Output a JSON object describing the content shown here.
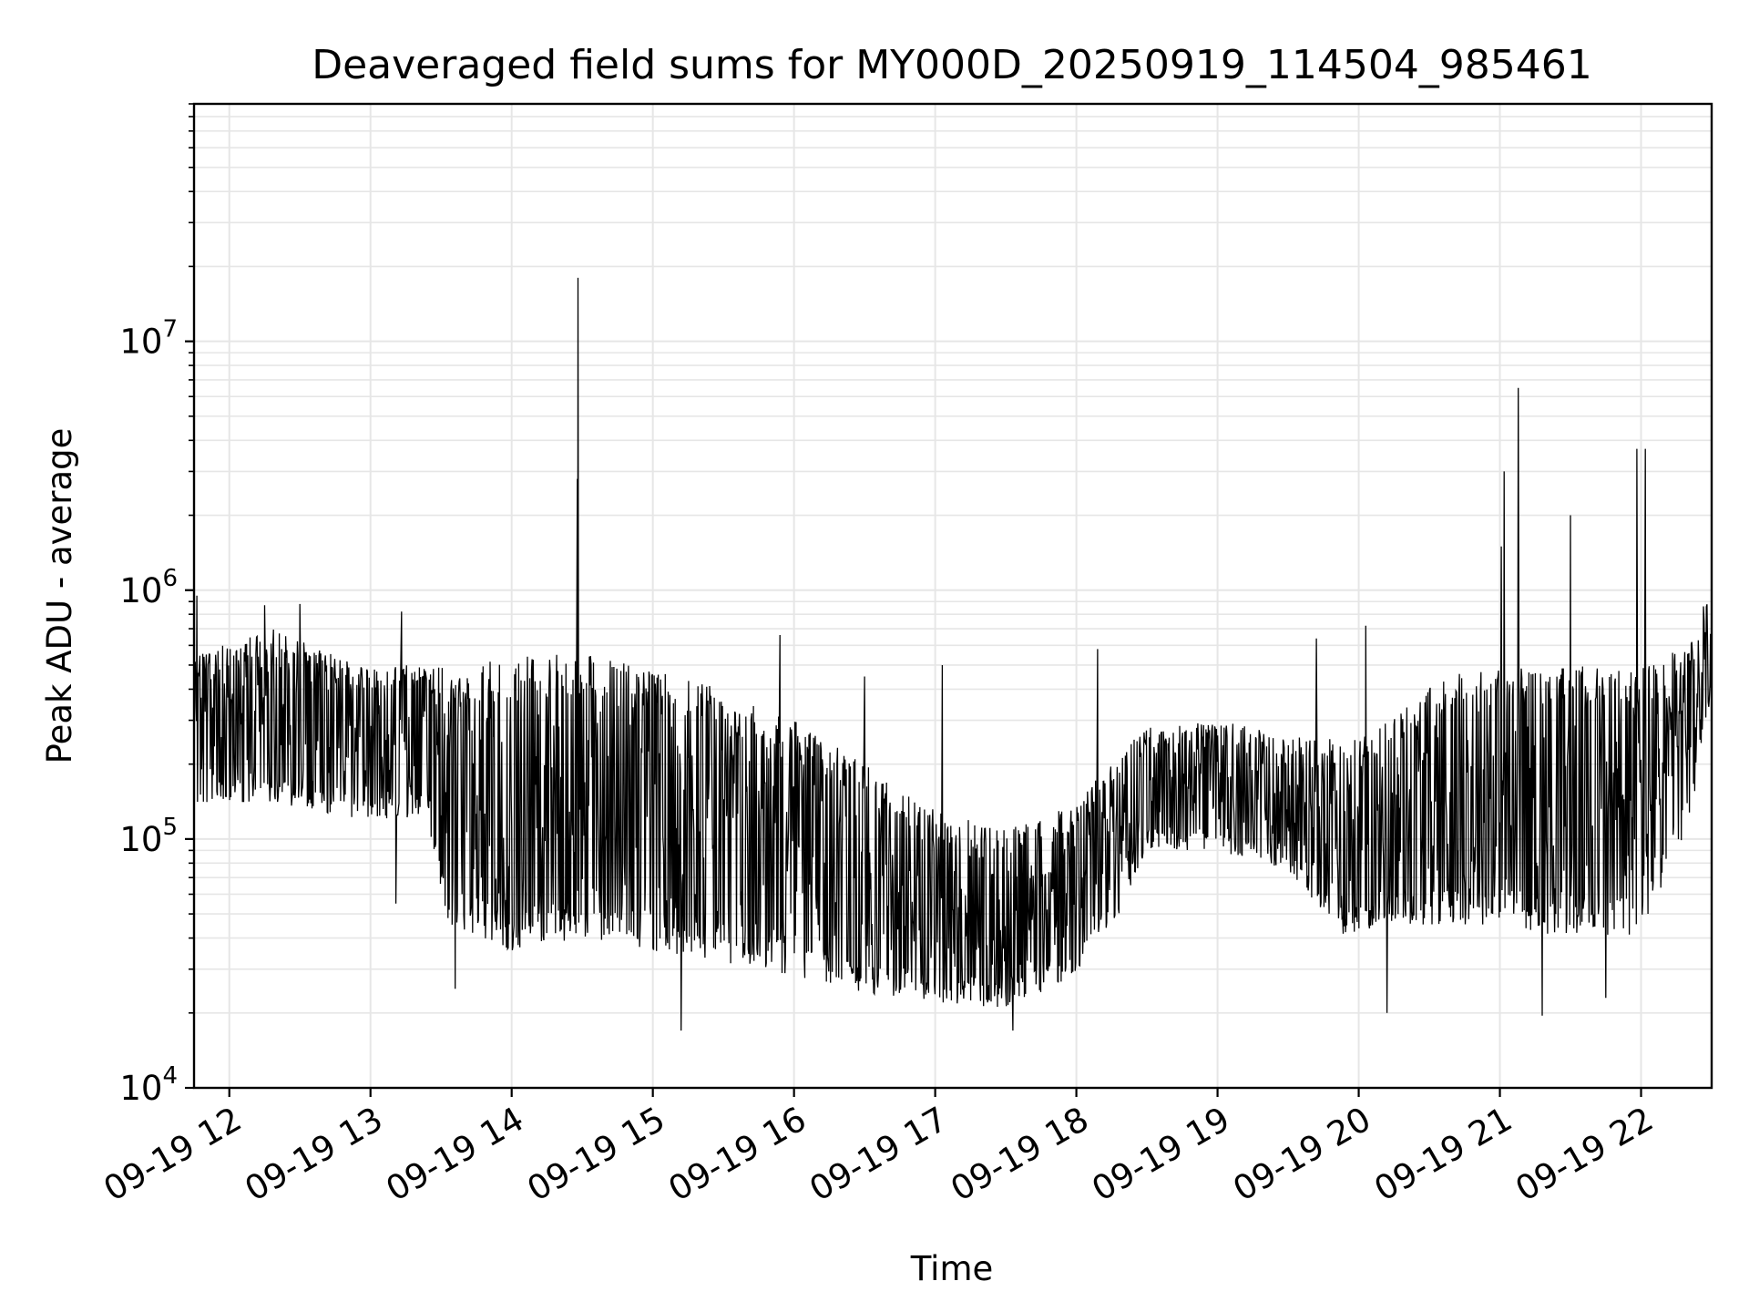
{
  "chart_data": {
    "type": "line",
    "title": "Deaveraged field sums for MY000D_20250919_114504_985461",
    "xlabel": "Time",
    "ylabel": "Peak ADU - average",
    "yscale": "log",
    "ylim": [
      10000,
      90000000
    ],
    "xlim_hours": [
      11.75,
      22.5
    ],
    "grid": true,
    "line_color": "#000000",
    "grid_color": "#e6e6e6",
    "x_ticks": [
      {
        "hour": 12,
        "label": "09-19 12"
      },
      {
        "hour": 13,
        "label": "09-19 13"
      },
      {
        "hour": 14,
        "label": "09-19 14"
      },
      {
        "hour": 15,
        "label": "09-19 15"
      },
      {
        "hour": 16,
        "label": "09-19 16"
      },
      {
        "hour": 17,
        "label": "09-19 17"
      },
      {
        "hour": 18,
        "label": "09-19 18"
      },
      {
        "hour": 19,
        "label": "09-19 19"
      },
      {
        "hour": 20,
        "label": "09-19 20"
      },
      {
        "hour": 21,
        "label": "09-19 21"
      },
      {
        "hour": 22,
        "label": "09-19 22"
      }
    ],
    "y_ticks": [
      {
        "value": 10000,
        "base": "10",
        "exp": "4"
      },
      {
        "value": 100000,
        "base": "10",
        "exp": "5"
      },
      {
        "value": 1000000,
        "base": "10",
        "exp": "6"
      },
      {
        "value": 10000000,
        "base": "10",
        "exp": "7"
      }
    ],
    "envelope": [
      {
        "h": 11.75,
        "lo": 140000,
        "hi": 550000
      },
      {
        "h": 12.3,
        "lo": 140000,
        "hi": 700000
      },
      {
        "h": 12.9,
        "lo": 120000,
        "hi": 500000
      },
      {
        "h": 13.4,
        "lo": 120000,
        "hi": 500000
      },
      {
        "h": 13.55,
        "lo": 45000,
        "hi": 500000
      },
      {
        "h": 14.0,
        "lo": 35000,
        "hi": 550000
      },
      {
        "h": 14.5,
        "lo": 40000,
        "hi": 560000
      },
      {
        "h": 15.0,
        "lo": 35000,
        "hi": 480000
      },
      {
        "h": 15.5,
        "lo": 32000,
        "hi": 400000
      },
      {
        "h": 16.0,
        "lo": 28000,
        "hi": 300000
      },
      {
        "h": 16.5,
        "lo": 24000,
        "hi": 200000
      },
      {
        "h": 17.0,
        "lo": 22000,
        "hi": 130000
      },
      {
        "h": 17.5,
        "lo": 21000,
        "hi": 110000
      },
      {
        "h": 18.0,
        "lo": 28000,
        "hi": 140000
      },
      {
        "h": 18.3,
        "lo": 50000,
        "hi": 220000
      },
      {
        "h": 18.5,
        "lo": 90000,
        "hi": 280000
      },
      {
        "h": 19.0,
        "lo": 90000,
        "hi": 300000
      },
      {
        "h": 19.5,
        "lo": 75000,
        "hi": 260000
      },
      {
        "h": 19.9,
        "lo": 40000,
        "hi": 250000
      },
      {
        "h": 20.2,
        "lo": 45000,
        "hi": 300000
      },
      {
        "h": 20.6,
        "lo": 45000,
        "hi": 450000
      },
      {
        "h": 21.0,
        "lo": 45000,
        "hi": 500000
      },
      {
        "h": 21.5,
        "lo": 40000,
        "hi": 500000
      },
      {
        "h": 22.0,
        "lo": 40000,
        "hi": 500000
      },
      {
        "h": 22.35,
        "lo": 120000,
        "hi": 600000
      },
      {
        "h": 22.5,
        "lo": 400000,
        "hi": 1100000
      }
    ],
    "spikes": [
      {
        "h": 14.47,
        "v": 18000000
      },
      {
        "h": 14.465,
        "v": 2800000
      },
      {
        "h": 21.03,
        "v": 3000000
      },
      {
        "h": 21.01,
        "v": 1500000
      },
      {
        "h": 21.13,
        "v": 6500000
      },
      {
        "h": 21.5,
        "v": 2000000
      },
      {
        "h": 21.97,
        "v": 3700000
      },
      {
        "h": 22.03,
        "v": 3700000
      },
      {
        "h": 11.77,
        "v": 950000
      },
      {
        "h": 12.25,
        "v": 870000
      },
      {
        "h": 12.5,
        "v": 880000
      },
      {
        "h": 13.22,
        "v": 820000
      },
      {
        "h": 13.18,
        "v": 55000
      },
      {
        "h": 15.9,
        "v": 660000
      },
      {
        "h": 19.7,
        "v": 640000
      },
      {
        "h": 20.05,
        "v": 720000
      },
      {
        "h": 18.15,
        "v": 580000
      },
      {
        "h": 17.55,
        "v": 17000
      },
      {
        "h": 15.2,
        "v": 17000
      },
      {
        "h": 20.2,
        "v": 20000
      },
      {
        "h": 21.3,
        "v": 19500
      },
      {
        "h": 17.05,
        "v": 500000
      },
      {
        "h": 16.5,
        "v": 450000
      },
      {
        "h": 13.6,
        "v": 25000
      },
      {
        "h": 21.75,
        "v": 23000
      }
    ]
  }
}
